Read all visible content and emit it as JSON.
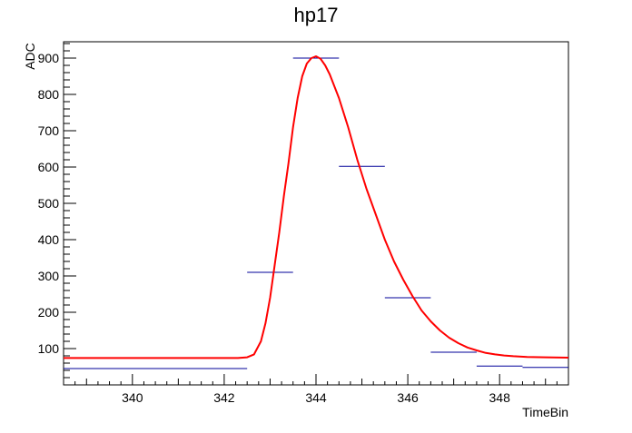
{
  "chart_data": {
    "type": "line",
    "title": "hp17",
    "xlabel": "TimeBin",
    "ylabel": "ADC",
    "xlim": [
      338.5,
      349.5
    ],
    "ylim": [
      0,
      945
    ],
    "x_ticks": [
      340,
      342,
      344,
      346,
      348
    ],
    "y_ticks": [
      100,
      200,
      300,
      400,
      500,
      600,
      700,
      800,
      900
    ],
    "grid": false,
    "legend": "none",
    "series": [
      {
        "style": "histogram-steps",
        "color": "#000099",
        "bins": [
          {
            "x_low": 338.5,
            "x_high": 342.5,
            "value": 45
          },
          {
            "x_low": 342.5,
            "x_high": 343.5,
            "value": 310
          },
          {
            "x_low": 343.5,
            "x_high": 344.5,
            "value": 900
          },
          {
            "x_low": 344.5,
            "x_high": 345.5,
            "value": 602
          },
          {
            "x_low": 345.5,
            "x_high": 346.5,
            "value": 240
          },
          {
            "x_low": 346.5,
            "x_high": 347.5,
            "value": 90
          },
          {
            "x_low": 347.5,
            "x_high": 348.5,
            "value": 52
          },
          {
            "x_low": 348.5,
            "x_high": 349.5,
            "value": 48
          }
        ]
      },
      {
        "style": "curve",
        "color": "#ff0000",
        "points": [
          [
            338.5,
            74
          ],
          [
            342.3,
            74
          ],
          [
            342.5,
            76
          ],
          [
            342.65,
            84
          ],
          [
            342.8,
            120
          ],
          [
            342.9,
            170
          ],
          [
            343.0,
            240
          ],
          [
            343.1,
            330
          ],
          [
            343.2,
            420
          ],
          [
            343.3,
            520
          ],
          [
            343.4,
            610
          ],
          [
            343.5,
            710
          ],
          [
            343.6,
            790
          ],
          [
            343.7,
            850
          ],
          [
            343.8,
            885
          ],
          [
            343.9,
            900
          ],
          [
            344.0,
            905
          ],
          [
            344.1,
            898
          ],
          [
            344.2,
            880
          ],
          [
            344.3,
            855
          ],
          [
            344.5,
            790
          ],
          [
            344.7,
            710
          ],
          [
            344.9,
            620
          ],
          [
            345.1,
            540
          ],
          [
            345.3,
            470
          ],
          [
            345.5,
            400
          ],
          [
            345.7,
            340
          ],
          [
            345.9,
            290
          ],
          [
            346.1,
            245
          ],
          [
            346.3,
            205
          ],
          [
            346.5,
            175
          ],
          [
            346.7,
            150
          ],
          [
            346.9,
            130
          ],
          [
            347.1,
            115
          ],
          [
            347.3,
            103
          ],
          [
            347.5,
            95
          ],
          [
            347.7,
            88
          ],
          [
            347.9,
            84
          ],
          [
            348.1,
            81
          ],
          [
            348.3,
            79
          ],
          [
            348.6,
            77
          ],
          [
            349.0,
            76
          ],
          [
            349.5,
            75
          ]
        ]
      }
    ]
  }
}
